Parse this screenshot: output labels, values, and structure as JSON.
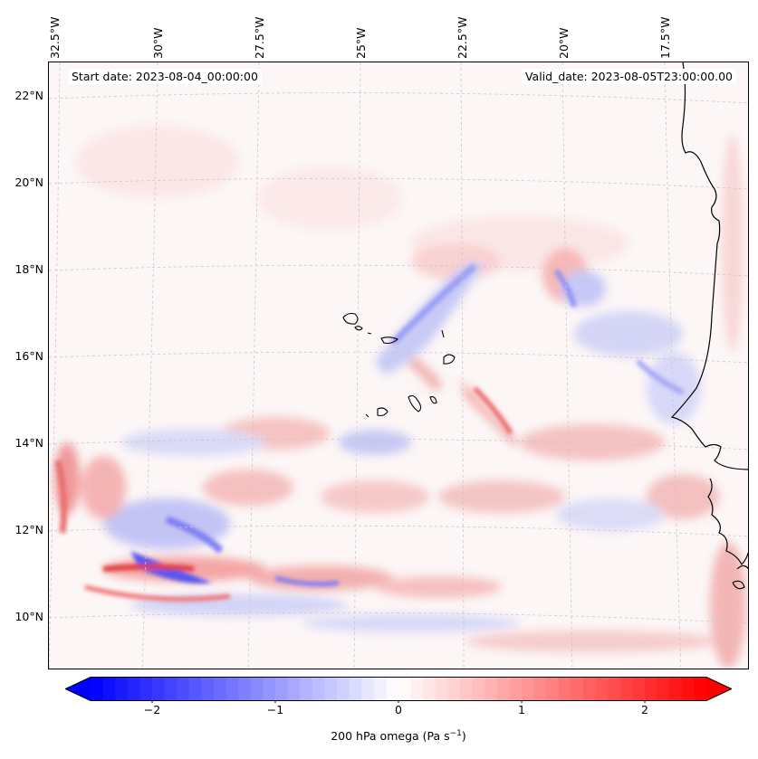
{
  "header": {
    "start_date": "Start date: 2023-08-04_00:00:00",
    "valid_date": "Valid_date: 2023-08-05T23:00:00.00"
  },
  "axes": {
    "lon_labels": [
      "32.5°W",
      "30°W",
      "27.5°W",
      "25°W",
      "22.5°W",
      "20°W",
      "17.5°W"
    ],
    "lat_labels": [
      "22°N",
      "20°N",
      "18°N",
      "16°N",
      "14°N",
      "12°N",
      "10°N"
    ]
  },
  "colorbar": {
    "label": "200 hPa omega (Pa s",
    "label_sup": "−1",
    "label_end": ")",
    "ticks": [
      "−2",
      "−1",
      "0",
      "1",
      "2"
    ],
    "tick_values": [
      -2,
      -1,
      0,
      1,
      2
    ],
    "range": [
      -2.5,
      2.5
    ],
    "colors": {
      "min": "#0000ff",
      "mid": "#ffffff",
      "max": "#ff0000"
    }
  },
  "colors": {
    "coastline": "#000000",
    "gridline": "#c8c8c8",
    "positive": "#ff0000",
    "negative": "#0000ff"
  }
}
